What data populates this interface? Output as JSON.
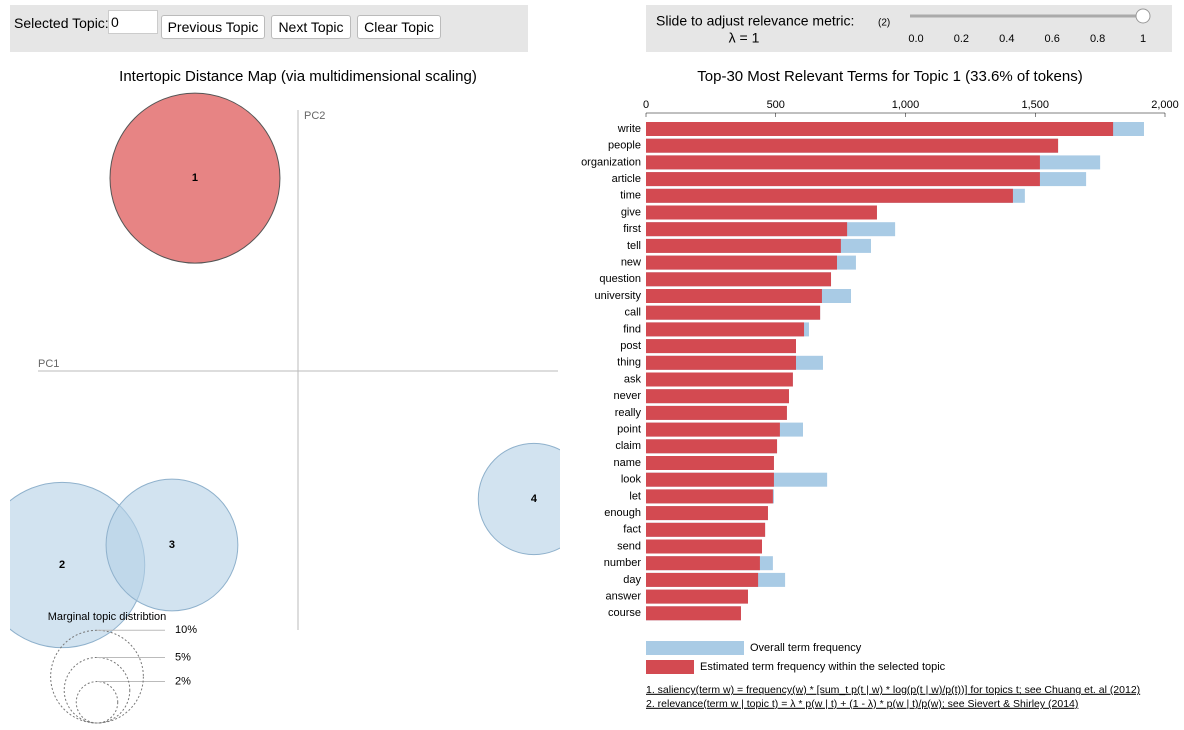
{
  "controls": {
    "topic_label": "Selected Topic:",
    "topic_value": "0",
    "buttons": [
      "Previous Topic",
      "Next Topic",
      "Clear Topic"
    ],
    "slider": {
      "label": "Slide to adjust relevance metric:",
      "note": "(2)",
      "value_label": "λ = 1",
      "value": 1,
      "min": 0,
      "max": 1,
      "ticks": [
        {
          "value": 0,
          "label": "0.0"
        },
        0.2,
        0.4,
        0.6,
        0.8,
        1
      ]
    }
  },
  "chart_data": [
    {
      "type": "bubble",
      "title": "Intertopic Distance Map (via multidimensional scaling)",
      "x_label": "PC1",
      "y_label": "PC2",
      "xlim": [
        -1,
        1
      ],
      "ylim": [
        -1,
        1
      ],
      "labels": [
        "1",
        "2",
        "3",
        "4"
      ],
      "x": [
        -0.376,
        -0.861,
        -0.46,
        0.861
      ],
      "y": [
        0.704,
        -0.708,
        -0.635,
        -0.467
      ],
      "sizes": [
        33.6,
        31.8,
        20.2,
        14.4
      ],
      "colors": [
        "#e36f6f",
        "#b4d0e6",
        "#b4d0e6",
        "#b4d0e6"
      ],
      "legend_title": "Marginal topic distribtion",
      "legend_sizes": [
        {
          "value": 2,
          "label": "2%"
        },
        {
          "value": 5,
          "label": "5%"
        },
        {
          "value": 10,
          "label": "10%"
        }
      ]
    },
    {
      "type": "barh",
      "title": "Top-30 Most Relevant Terms for Topic 1 (33.6% of tokens)",
      "categories": [
        "write",
        "people",
        "organization",
        "article",
        "time",
        "give",
        "first",
        "tell",
        "new",
        "question",
        "university",
        "call",
        "find",
        "post",
        "thing",
        "ask",
        "never",
        "really",
        "point",
        "claim",
        "name",
        "look",
        "let",
        "enough",
        "fact",
        "send",
        "number",
        "day",
        "answer",
        "course"
      ],
      "series": [
        {
          "name": "Overall term frequency",
          "color": "#a9cbe5",
          "values": [
            1919,
            1588,
            1750,
            1696,
            1460,
            890,
            960,
            867,
            809,
            713,
            790,
            671,
            628,
            578,
            682,
            566,
            551,
            543,
            605,
            505,
            493,
            698,
            493,
            470,
            459,
            447,
            489,
            536,
            393,
            366
          ]
        },
        {
          "name": "Estimated term frequency within the selected topic",
          "color": "#d34a51",
          "values": [
            1800,
            1588,
            1518,
            1518,
            1414,
            890,
            775,
            751,
            736,
            713,
            678,
            671,
            609,
            578,
            578,
            566,
            551,
            543,
            516,
            505,
            493,
            493,
            489,
            470,
            459,
            447,
            439,
            432,
            393,
            366
          ]
        }
      ],
      "xlim": [
        0,
        2000
      ],
      "xticks": [
        0,
        500,
        {
          "value": 1000,
          "label": "1,000"
        },
        {
          "value": 1500,
          "label": "1,500"
        },
        {
          "value": 2000,
          "label": "2,000"
        }
      ],
      "notes": [
        "1. saliency(term w) = frequency(w) * [sum_t p(t | w) * log(p(t | w)/p(t))] for topics t; see Chuang et. al (2012)",
        "2. relevance(term w | topic t) = λ * p(w | t) + (1 - λ) * p(w | t)/p(w); see Sievert & Shirley (2014)"
      ]
    }
  ]
}
